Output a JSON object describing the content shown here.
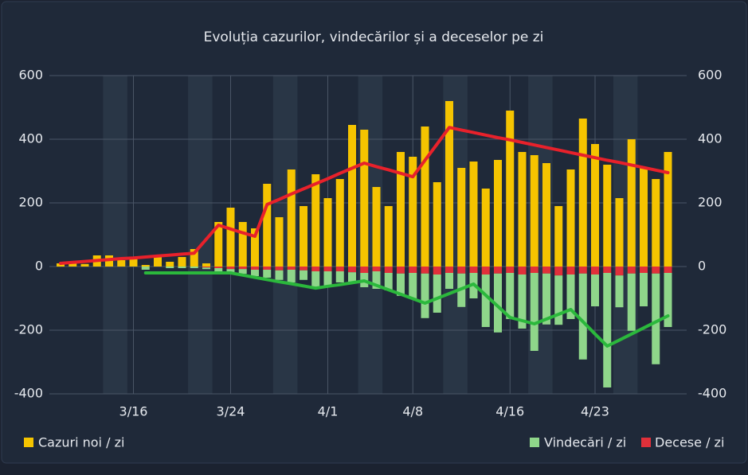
{
  "chart_data": {
    "type": "bar",
    "title": "Evoluția cazurilor, vindecărilor și a deceselor pe zi",
    "categories": [
      null,
      null,
      null,
      null,
      null,
      null,
      "3/16",
      null,
      null,
      null,
      null,
      null,
      null,
      null,
      "3/24",
      null,
      null,
      null,
      null,
      null,
      null,
      null,
      "4/1",
      null,
      null,
      null,
      null,
      null,
      null,
      "4/8",
      null,
      null,
      null,
      null,
      null,
      null,
      null,
      "4/16",
      null,
      null,
      null,
      null,
      null,
      null,
      "4/23",
      null,
      null,
      null,
      null,
      null,
      null
    ],
    "series": [
      {
        "name": "Cazuri noi / zi",
        "color": "#f5c400",
        "values": [
          10,
          15,
          8,
          35,
          35,
          20,
          30,
          5,
          30,
          15,
          30,
          55,
          10,
          140,
          185,
          140,
          120,
          260,
          155,
          305,
          190,
          290,
          215,
          275,
          445,
          430,
          250,
          190,
          360,
          345,
          440,
          265,
          520,
          310,
          330,
          245,
          335,
          490,
          360,
          350,
          325,
          190,
          305,
          465,
          385,
          320,
          215,
          400,
          310,
          275,
          360
        ]
      },
      {
        "name": "Decese / zi",
        "color": "#e0303a",
        "values": [
          0,
          0,
          0,
          0,
          0,
          0,
          0,
          0,
          0,
          0,
          0,
          0,
          -3,
          -5,
          -8,
          -8,
          -10,
          -10,
          -12,
          -10,
          -12,
          -15,
          -15,
          -15,
          -18,
          -20,
          -15,
          -20,
          -22,
          -20,
          -22,
          -25,
          -20,
          -22,
          -20,
          -25,
          -22,
          -20,
          -25,
          -20,
          -22,
          -28,
          -25,
          -22,
          -25,
          -20,
          -28,
          -22,
          -20,
          -22,
          -20
        ]
      },
      {
        "name": "Vindecări / zi",
        "color": "#8fd68a",
        "values": [
          0,
          0,
          0,
          0,
          0,
          0,
          0,
          -10,
          0,
          -5,
          -5,
          -5,
          -5,
          -10,
          -15,
          -15,
          -20,
          -25,
          -30,
          -40,
          -30,
          -55,
          -45,
          -35,
          -30,
          -45,
          -55,
          -55,
          -70,
          -80,
          -140,
          -120,
          -50,
          -105,
          -80,
          -165,
          -185,
          -145,
          -170,
          -245,
          -160,
          -155,
          -140,
          -270,
          -100,
          -360,
          -100,
          -180,
          -105,
          -285,
          -170
        ]
      }
    ],
    "lines": [
      {
        "color": "#e8212b",
        "values": [
          10,
          13,
          16,
          19,
          22,
          25,
          27,
          30,
          33,
          36,
          39,
          42,
          86,
          130,
          118,
          106,
          95,
          195,
          211,
          228,
          244,
          260,
          276,
          293,
          309,
          325,
          314,
          304,
          293,
          282,
          334,
          385,
          437,
          429,
          421,
          413,
          405,
          398,
          390,
          382,
          374,
          366,
          358,
          350,
          342,
          334,
          327,
          319,
          311,
          303,
          295
        ]
      },
      {
        "color": "#2bb83c",
        "values": [
          null,
          null,
          null,
          null,
          null,
          null,
          null,
          -20,
          -20,
          -20,
          -20,
          -20,
          -20,
          -20,
          -20,
          -27,
          -34,
          -41,
          -48,
          -54,
          -61,
          -68,
          -62,
          -57,
          -51,
          -45,
          -59,
          -73,
          -87,
          -101,
          -115,
          -100,
          -85,
          -70,
          -55,
          -90,
          -125,
          -160,
          -170,
          -180,
          -165,
          -150,
          -135,
          -173,
          -212,
          -250,
          -231,
          -212,
          -193,
          -174,
          -155
        ]
      }
    ],
    "ylim": [
      -400,
      600
    ],
    "yticks": [
      600,
      400,
      200,
      0,
      -200,
      -400
    ],
    "y2lim": [
      -400,
      600
    ],
    "y2ticks": [
      600,
      400,
      200,
      0,
      -200,
      -400
    ],
    "grid": true
  }
}
